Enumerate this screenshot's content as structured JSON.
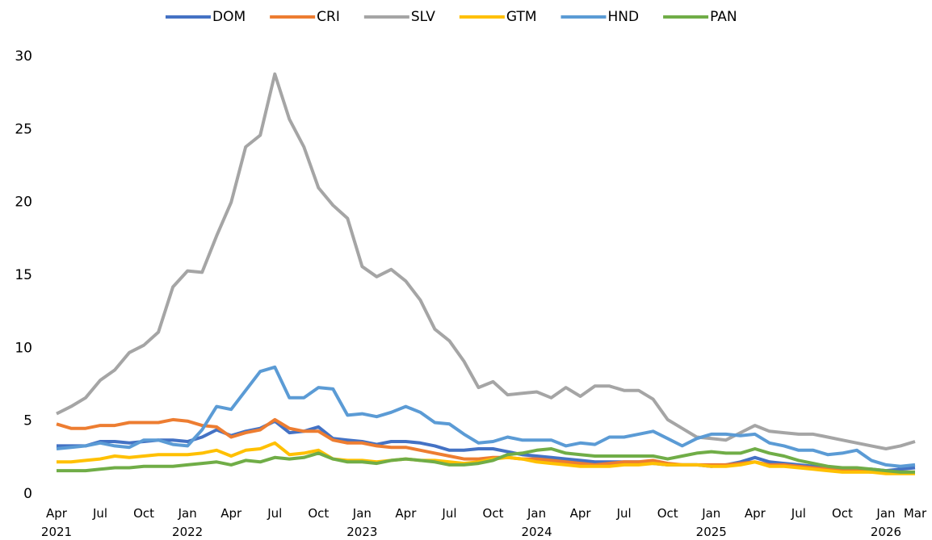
{
  "chart_data": {
    "type": "line",
    "categories": [
      "Apr 2021",
      null,
      null,
      "Jul",
      null,
      null,
      "Oct",
      null,
      null,
      "Jan 2022",
      null,
      null,
      "Apr",
      null,
      null,
      "Jul",
      null,
      null,
      "Oct",
      null,
      null,
      "Jan 2023",
      null,
      null,
      "Apr",
      null,
      null,
      "Jul",
      null,
      null,
      "Oct",
      null,
      null,
      "Jan 2024",
      null,
      null,
      "Apr",
      null,
      null,
      "Jul",
      null,
      null,
      "Oct",
      null,
      null,
      "Jan 2025",
      null,
      null,
      "Apr",
      null,
      null,
      "Jul",
      null,
      null,
      "Oct",
      null,
      null,
      "Jan 2026",
      null,
      "Mar"
    ],
    "series": [
      {
        "name": "DOM",
        "color": "#4472c4",
        "values": [
          3.3,
          3.3,
          3.3,
          3.6,
          3.6,
          3.5,
          3.6,
          3.7,
          3.7,
          3.6,
          3.9,
          4.4,
          4.0,
          4.3,
          4.5,
          5.0,
          4.2,
          4.3,
          4.6,
          3.8,
          3.7,
          3.6,
          3.4,
          3.6,
          3.6,
          3.5,
          3.3,
          3.0,
          3.0,
          3.1,
          3.1,
          2.9,
          2.7,
          2.6,
          2.5,
          2.4,
          2.3,
          2.2,
          2.2,
          2.2,
          2.2,
          2.1,
          2.0,
          2.0,
          2.0,
          1.9,
          2.0,
          2.2,
          2.5,
          2.2,
          2.1,
          2.0,
          1.9,
          1.8,
          1.8,
          1.7,
          1.7,
          1.6,
          1.7,
          1.8
        ]
      },
      {
        "name": "CRI",
        "color": "#ed7d31",
        "values": [
          4.8,
          4.5,
          4.5,
          4.7,
          4.7,
          4.9,
          4.9,
          4.9,
          5.1,
          5.0,
          4.7,
          4.6,
          3.9,
          4.2,
          4.4,
          5.1,
          4.5,
          4.3,
          4.3,
          3.7,
          3.5,
          3.5,
          3.3,
          3.2,
          3.2,
          3.0,
          2.8,
          2.6,
          2.4,
          2.4,
          2.5,
          2.5,
          2.4,
          2.4,
          2.3,
          2.2,
          2.1,
          2.0,
          2.1,
          2.2,
          2.2,
          2.3,
          2.1,
          2.0,
          2.0,
          2.0,
          2.0,
          2.1,
          2.2,
          2.0,
          2.0,
          1.9,
          1.8,
          1.7,
          1.7,
          1.6,
          1.5,
          1.5,
          1.5,
          1.5
        ]
      },
      {
        "name": "SLV",
        "color": "#a5a5a5",
        "values": [
          5.5,
          6.0,
          6.6,
          7.8,
          8.5,
          9.7,
          10.2,
          11.1,
          14.2,
          15.3,
          15.2,
          17.7,
          20.0,
          23.8,
          24.6,
          28.8,
          25.7,
          23.8,
          21.0,
          19.8,
          18.9,
          15.6,
          14.9,
          15.4,
          14.6,
          13.3,
          11.3,
          10.5,
          9.1,
          7.3,
          7.7,
          6.8,
          6.9,
          7.0,
          6.6,
          7.3,
          6.7,
          7.4,
          7.4,
          7.1,
          7.1,
          6.5,
          5.1,
          4.5,
          3.9,
          3.8,
          3.7,
          4.2,
          4.7,
          4.3,
          4.2,
          4.1,
          4.1,
          3.9,
          3.7,
          3.5,
          3.3,
          3.1,
          3.3,
          3.6
        ]
      },
      {
        "name": "GTM",
        "color": "#ffc000",
        "values": [
          2.2,
          2.2,
          2.3,
          2.4,
          2.6,
          2.5,
          2.6,
          2.7,
          2.7,
          2.7,
          2.8,
          3.0,
          2.6,
          3.0,
          3.1,
          3.5,
          2.7,
          2.8,
          3.0,
          2.4,
          2.3,
          2.3,
          2.2,
          2.3,
          2.4,
          2.3,
          2.3,
          2.2,
          2.1,
          2.2,
          2.4,
          2.5,
          2.4,
          2.2,
          2.1,
          2.0,
          1.9,
          1.9,
          1.9,
          2.0,
          2.0,
          2.1,
          2.0,
          2.0,
          2.0,
          1.9,
          1.9,
          2.0,
          2.2,
          1.9,
          1.9,
          1.8,
          1.7,
          1.6,
          1.5,
          1.5,
          1.5,
          1.4,
          1.4,
          1.4
        ]
      },
      {
        "name": "HND",
        "color": "#5b9bd5",
        "values": [
          3.1,
          3.2,
          3.3,
          3.5,
          3.3,
          3.2,
          3.7,
          3.7,
          3.4,
          3.3,
          4.4,
          6.0,
          5.8,
          7.1,
          8.4,
          8.7,
          6.6,
          6.6,
          7.3,
          7.2,
          5.4,
          5.5,
          5.3,
          5.6,
          6.0,
          5.6,
          4.9,
          4.8,
          4.1,
          3.5,
          3.6,
          3.9,
          3.7,
          3.7,
          3.7,
          3.3,
          3.5,
          3.4,
          3.9,
          3.9,
          4.1,
          4.3,
          3.8,
          3.3,
          3.8,
          4.1,
          4.1,
          4.0,
          4.1,
          3.5,
          3.3,
          3.0,
          3.0,
          2.7,
          2.8,
          3.0,
          2.3,
          2.0,
          1.9,
          2.0
        ]
      },
      {
        "name": "PAN",
        "color": "#70ad47",
        "values": [
          1.6,
          1.6,
          1.6,
          1.7,
          1.8,
          1.8,
          1.9,
          1.9,
          1.9,
          2.0,
          2.1,
          2.2,
          2.0,
          2.3,
          2.2,
          2.5,
          2.4,
          2.5,
          2.8,
          2.4,
          2.2,
          2.2,
          2.1,
          2.3,
          2.4,
          2.3,
          2.2,
          2.0,
          2.0,
          2.1,
          2.3,
          2.7,
          2.8,
          3.0,
          3.1,
          2.8,
          2.7,
          2.6,
          2.6,
          2.6,
          2.6,
          2.6,
          2.4,
          2.6,
          2.8,
          2.9,
          2.8,
          2.8,
          3.1,
          2.8,
          2.6,
          2.3,
          2.1,
          1.9,
          1.8,
          1.8,
          1.7,
          1.6,
          1.5,
          1.5
        ]
      }
    ],
    "ylim": [
      0,
      30
    ],
    "yticks": [
      0,
      5,
      10,
      15,
      20,
      25,
      30
    ],
    "grid": false,
    "legend": "top"
  }
}
